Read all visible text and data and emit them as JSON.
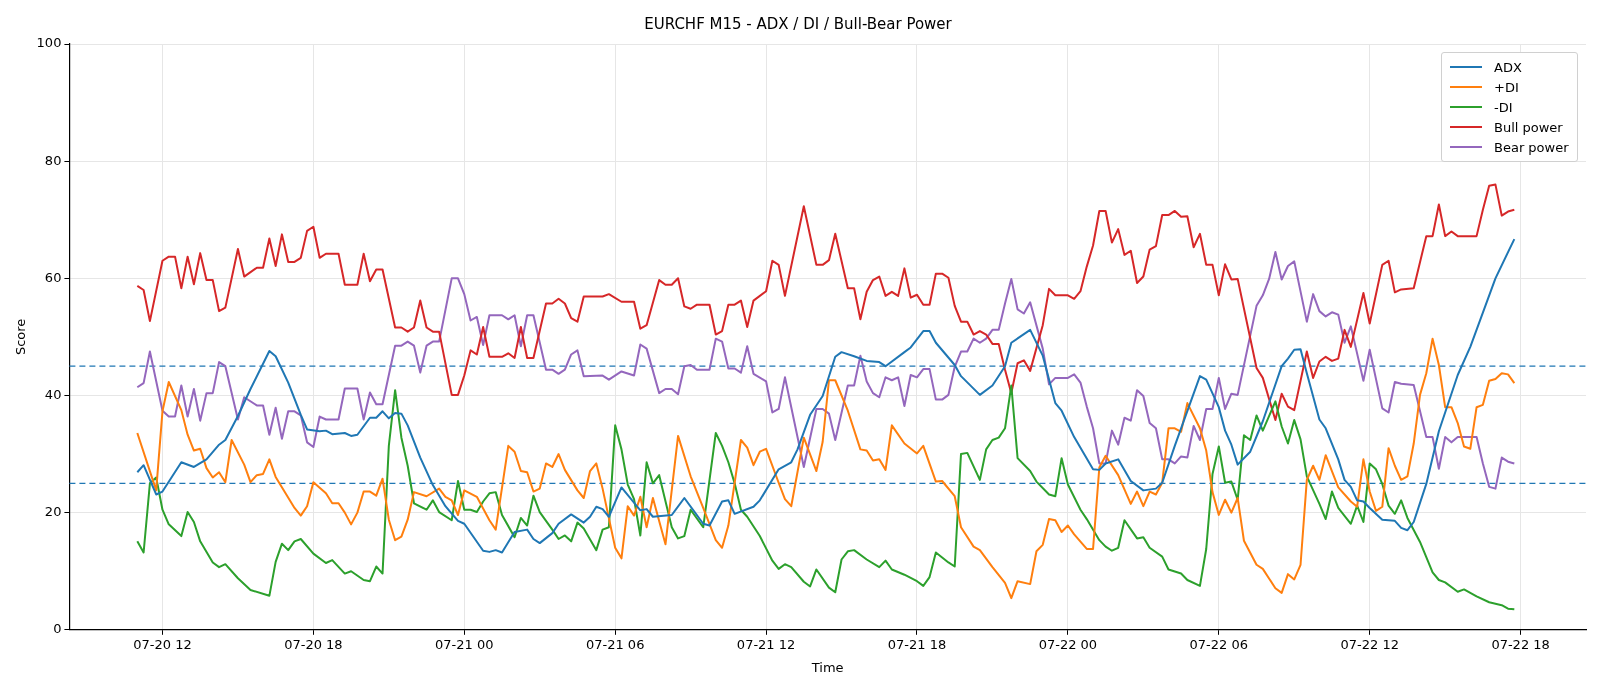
{
  "chart_data": {
    "type": "line",
    "title": "EURCHF M15 - ADX / DI / Bull-Bear Power",
    "xlabel": "Time",
    "ylabel": "Score",
    "xlim": [
      "--07-20T08:18",
      "--07-22T20:36"
    ],
    "xticks": [
      {
        "value": "--07-20T12:00",
        "label": "07-20 12"
      },
      {
        "value": "--07-20T18:00",
        "label": "07-20 18"
      },
      {
        "value": "--07-21T00:00",
        "label": "07-21 00"
      },
      {
        "value": "--07-21T06:00",
        "label": "07-21 06"
      },
      {
        "value": "--07-21T12:00",
        "label": "07-21 12"
      },
      {
        "value": "--07-21T18:00",
        "label": "07-21 18"
      },
      {
        "value": "--07-22T00:00",
        "label": "07-22 00"
      },
      {
        "value": "--07-22T06:00",
        "label": "07-22 06"
      },
      {
        "value": "--07-22T12:00",
        "label": "07-22 12"
      },
      {
        "value": "--07-22T18:00",
        "label": "07-22 18"
      }
    ],
    "ylim": [
      0,
      100
    ],
    "yticks": [
      0,
      20,
      40,
      60,
      80,
      100
    ],
    "grid": true,
    "legend": "top right",
    "marker": "none",
    "line_style": "solid",
    "ref_lines": [
      {
        "axis": "y",
        "value": 45,
        "color": "#1f77b4",
        "line_style": "dashed"
      },
      {
        "axis": "y",
        "value": 25,
        "color": "#1f77b4",
        "line_style": "dashed"
      }
    ],
    "series": [
      {
        "name": "ADX",
        "color": "#1f77b4",
        "x": [
          "--07-20T11:00",
          "--07-20T11:15",
          "--07-20T11:45",
          "--07-20T12:00",
          "--07-20T12:45",
          "--07-20T13:15",
          "--07-20T13:45",
          "--07-20T14:15",
          "--07-20T14:30",
          "--07-20T15:00",
          "--07-20T15:30",
          "--07-20T16:15",
          "--07-20T16:30",
          "--07-20T17:00",
          "--07-20T17:30",
          "--07-20T17:45",
          "--07-20T18:15",
          "--07-20T18:30",
          "--07-20T18:45",
          "--07-20T19:15",
          "--07-20T19:30",
          "--07-20T19:45",
          "--07-20T20:15",
          "--07-20T20:30",
          "--07-20T20:45",
          "--07-20T21:00",
          "--07-20T21:15",
          "--07-20T21:30",
          "--07-20T21:45",
          "--07-20T22:15",
          "--07-20T22:45",
          "--07-20T23:15",
          "--07-20T23:45",
          "--07-21T00:00",
          "--07-21T00:45",
          "--07-21T01:00",
          "--07-21T01:15",
          "--07-21T01:30",
          "--07-21T02:00",
          "--07-21T02:30",
          "--07-21T02:45",
          "--07-21T03:00",
          "--07-21T03:30",
          "--07-21T03:45",
          "--07-21T04:15",
          "--07-21T04:45",
          "--07-21T05:00",
          "--07-21T05:15",
          "--07-21T05:30",
          "--07-21T05:45",
          "--07-21T06:15",
          "--07-21T07:00",
          "--07-21T07:15",
          "--07-21T07:30",
          "--07-21T08:15",
          "--07-21T08:45",
          "--07-21T09:30",
          "--07-21T09:45",
          "--07-21T10:15",
          "--07-21T10:30",
          "--07-21T10:45",
          "--07-21T11:30",
          "--07-21T11:45",
          "--07-21T12:30",
          "--07-21T13:00",
          "--07-21T13:15",
          "--07-21T13:45",
          "--07-21T14:15",
          "--07-21T14:45",
          "--07-21T15:00",
          "--07-21T15:30",
          "--07-21T16:00",
          "--07-21T16:30",
          "--07-21T16:45",
          "--07-21T17:30",
          "--07-21T17:45",
          "--07-21T18:15",
          "--07-21T18:30",
          "--07-21T18:45",
          "--07-21T19:30",
          "--07-21T19:45",
          "--07-21T20:30",
          "--07-21T21:00",
          "--07-21T21:30",
          "--07-21T21:45",
          "--07-21T22:30",
          "--07-21T23:00",
          "--07-21T23:30",
          "--07-21T23:45",
          "--07-22T00:15",
          "--07-22T01:00",
          "--07-22T01:15",
          "--07-22T01:30",
          "--07-22T02:00",
          "--07-22T02:30",
          "--07-22T03:00",
          "--07-22T03:30",
          "--07-22T03:45",
          "--07-22T04:15",
          "--07-22T05:15",
          "--07-22T05:30",
          "--07-22T06:00",
          "--07-22T06:15",
          "--07-22T06:30",
          "--07-22T06:45",
          "--07-22T07:15",
          "--07-22T07:45",
          "--07-22T08:30",
          "--07-22T08:45",
          "--07-22T09:00",
          "--07-22T09:15",
          "--07-22T09:30",
          "--07-22T10:00",
          "--07-22T10:15",
          "--07-22T10:45",
          "--07-22T11:00",
          "--07-22T11:15",
          "--07-22T11:30",
          "--07-22T11:45",
          "--07-22T12:00",
          "--07-22T12:30",
          "--07-22T13:00",
          "--07-22T13:15",
          "--07-22T13:30",
          "--07-22T13:45",
          "--07-22T14:15",
          "--07-22T14:45",
          "--07-22T15:30",
          "--07-22T16:00",
          "--07-22T17:00",
          "--07-22T17:45"
        ],
        "values": [
          26.9,
          28.1,
          23.1,
          23.6,
          28.6,
          27.8,
          29.1,
          31.6,
          32.4,
          36.5,
          41.1,
          47.6,
          46.7,
          42.2,
          36.7,
          34.2,
          33.9,
          34.0,
          33.4,
          33.6,
          33.1,
          33.3,
          36.2,
          36.2,
          37.3,
          36.1,
          37.0,
          36.9,
          34.9,
          29.4,
          24.7,
          21.1,
          18.6,
          18.1,
          13.5,
          13.3,
          13.6,
          13.2,
          16.7,
          17.1,
          15.5,
          14.8,
          16.5,
          18.1,
          19.7,
          18.3,
          19.3,
          21.0,
          20.6,
          19.3,
          24.3,
          20.4,
          20.6,
          19.3,
          19.6,
          22.5,
          18.1,
          17.8,
          21.9,
          22.1,
          19.8,
          21.0,
          22.1,
          27.4,
          28.6,
          30.8,
          36.7,
          39.9,
          46.6,
          47.4,
          46.7,
          45.9,
          45.7,
          45.0,
          47.4,
          48.2,
          51.0,
          51.0,
          49.0,
          45.2,
          43.3,
          40.1,
          41.7,
          45.0,
          49.0,
          51.2,
          46.8,
          38.7,
          37.4,
          32.9,
          27.4,
          27.3,
          28.4,
          29.1,
          25.4,
          23.8,
          24.1,
          25.1,
          31.4,
          43.3,
          42.7,
          38.0,
          34.0,
          31.6,
          28.2,
          30.4,
          35.6,
          45.0,
          46.3,
          47.8,
          47.9,
          43.8,
          35.9,
          34.4,
          29.1,
          25.6,
          24.4,
          22.1,
          21.9,
          20.8,
          18.8,
          18.6,
          17.4,
          17.0,
          18.4,
          24.9,
          33.9,
          43.5,
          48.3,
          60.0,
          66.7
        ]
      },
      {
        "name": "+DI",
        "color": "#ff7f0e",
        "x": [
          "--07-20T11:00",
          "--07-20T11:45",
          "--07-20T12:00",
          "--07-20T12:15",
          "--07-20T12:45",
          "--07-20T13:00",
          "--07-20T13:15",
          "--07-20T13:30",
          "--07-20T13:45",
          "--07-20T14:00",
          "--07-20T14:15",
          "--07-20T14:30",
          "--07-20T14:45",
          "--07-20T15:15",
          "--07-20T15:30",
          "--07-20T15:45",
          "--07-20T16:00",
          "--07-20T16:15",
          "--07-20T16:30",
          "--07-20T17:15",
          "--07-20T17:30",
          "--07-20T17:45",
          "--07-20T18:00",
          "--07-20T18:30",
          "--07-20T18:45",
          "--07-20T19:00",
          "--07-20T19:15",
          "--07-20T19:30",
          "--07-20T19:45",
          "--07-20T20:00",
          "--07-20T20:15",
          "--07-20T20:30",
          "--07-20T20:45",
          "--07-20T21:00",
          "--07-20T21:15",
          "--07-20T21:30",
          "--07-20T21:45",
          "--07-20T22:00",
          "--07-20T22:30",
          "--07-20T23:00",
          "--07-20T23:15",
          "--07-20T23:30",
          "--07-20T23:45",
          "--07-21T00:00",
          "--07-21T00:30",
          "--07-21T01:00",
          "--07-21T01:15",
          "--07-21T01:45",
          "--07-21T02:00",
          "--07-21T02:15",
          "--07-21T02:30",
          "--07-21T02:45",
          "--07-21T03:00",
          "--07-21T03:15",
          "--07-21T03:30",
          "--07-21T03:45",
          "--07-21T04:00",
          "--07-21T04:30",
          "--07-21T04:45",
          "--07-21T05:00",
          "--07-21T05:15",
          "--07-21T05:30",
          "--07-21T06:00",
          "--07-21T06:15",
          "--07-21T06:30",
          "--07-21T06:45",
          "--07-21T07:00",
          "--07-21T07:15",
          "--07-21T07:30",
          "--07-21T08:00",
          "--07-21T08:30",
          "--07-21T09:00",
          "--07-21T09:30",
          "--07-21T10:00",
          "--07-21T10:15",
          "--07-21T10:30",
          "--07-21T11:00",
          "--07-21T11:15",
          "--07-21T11:30",
          "--07-21T11:45",
          "--07-21T12:00",
          "--07-21T12:30",
          "--07-21T12:45",
          "--07-21T13:00",
          "--07-21T13:30",
          "--07-21T14:00",
          "--07-21T14:15",
          "--07-21T14:30",
          "--07-21T14:45",
          "--07-21T15:15",
          "--07-21T15:45",
          "--07-21T16:00",
          "--07-21T16:15",
          "--07-21T16:30",
          "--07-21T16:45",
          "--07-21T17:00",
          "--07-21T17:30",
          "--07-21T18:00",
          "--07-21T18:15",
          "--07-21T18:45",
          "--07-21T19:00",
          "--07-21T19:30",
          "--07-21T19:45",
          "--07-21T20:15",
          "--07-21T20:30",
          "--07-21T21:00",
          "--07-21T21:30",
          "--07-21T21:45",
          "--07-21T22:00",
          "--07-21T22:30",
          "--07-21T22:45",
          "--07-21T23:00",
          "--07-21T23:15",
          "--07-21T23:30",
          "--07-21T23:45",
          "--07-22T00:00",
          "--07-22T00:15",
          "--07-22T00:45",
          "--07-22T01:00",
          "--07-22T01:15",
          "--07-22T01:30",
          "--07-22T02:00",
          "--07-22T02:30",
          "--07-22T02:45",
          "--07-22T03:00",
          "--07-22T03:15",
          "--07-22T03:30",
          "--07-22T03:45",
          "--07-22T04:00",
          "--07-22T04:15",
          "--07-22T04:30",
          "--07-22T04:45",
          "--07-22T05:15",
          "--07-22T05:30",
          "--07-22T05:45",
          "--07-22T06:00",
          "--07-22T06:15",
          "--07-22T06:30",
          "--07-22T06:45",
          "--07-22T07:00",
          "--07-22T07:30",
          "--07-22T07:45",
          "--07-22T08:15",
          "--07-22T08:30",
          "--07-22T08:45",
          "--07-22T09:00",
          "--07-22T09:15",
          "--07-22T09:30",
          "--07-22T09:45",
          "--07-22T10:00",
          "--07-22T10:15",
          "--07-22T10:45",
          "--07-22T11:15",
          "--07-22T11:30",
          "--07-22T11:45",
          "--07-22T12:00",
          "--07-22T12:15",
          "--07-22T12:30",
          "--07-22T12:45",
          "--07-22T13:00",
          "--07-22T13:15",
          "--07-22T13:30",
          "--07-22T13:45",
          "--07-22T14:00",
          "--07-22T14:15",
          "--07-22T14:30",
          "--07-22T14:45",
          "--07-22T15:00",
          "--07-22T15:15",
          "--07-22T15:30",
          "--07-22T15:45",
          "--07-22T16:00",
          "--07-22T16:15",
          "--07-22T16:30",
          "--07-22T16:45",
          "--07-22T17:00",
          "--07-22T17:15",
          "--07-22T17:30",
          "--07-22T17:45"
        ],
        "values": [
          33.6,
          23.8,
          37.3,
          42.3,
          37.5,
          33.3,
          30.6,
          30.9,
          27.6,
          26.0,
          26.9,
          25.2,
          32.4,
          28.2,
          25.2,
          26.4,
          26.6,
          29.1,
          26.1,
          20.8,
          19.5,
          21.1,
          25.2,
          23.3,
          21.6,
          21.6,
          20.0,
          18.0,
          20.0,
          23.6,
          23.6,
          22.9,
          25.8,
          18.8,
          15.3,
          15.9,
          18.8,
          23.5,
          22.8,
          24.1,
          22.7,
          22.1,
          19.6,
          23.8,
          22.7,
          18.7,
          17.1,
          31.4,
          30.4,
          27.1,
          26.9,
          23.6,
          24.1,
          28.4,
          27.8,
          30.0,
          27.3,
          23.8,
          22.5,
          27.1,
          28.4,
          24.1,
          14.0,
          12.2,
          21.1,
          19.5,
          22.7,
          17.5,
          22.5,
          14.6,
          33.1,
          26.2,
          20.8,
          15.3,
          14.0,
          17.8,
          32.4,
          31.1,
          28.1,
          30.4,
          30.9,
          25.1,
          22.3,
          21.1,
          32.8,
          27.1,
          32.1,
          42.6,
          42.6,
          37.4,
          30.8,
          30.6,
          28.9,
          29.1,
          27.3,
          34.9,
          31.8,
          30.1,
          31.4,
          25.3,
          25.4,
          22.8,
          17.5,
          14.2,
          13.6,
          10.7,
          8.0,
          5.4,
          8.3,
          7.8,
          13.4,
          14.5,
          18.9,
          18.7,
          16.7,
          17.8,
          16.3,
          13.8,
          13.8,
          27.7,
          29.7,
          26.4,
          21.5,
          23.6,
          21.1,
          23.6,
          23.1,
          25.1,
          34.4,
          34.4,
          33.8,
          38.7,
          34.4,
          30.6,
          23.5,
          19.6,
          22.2,
          20.0,
          22.5,
          15.2,
          11.1,
          10.4,
          7.1,
          6.3,
          9.5,
          8.6,
          11.1,
          25.6,
          28.0,
          25.6,
          29.8,
          24.3,
          21.9,
          21.0,
          29.1,
          23.6,
          20.3,
          21.0,
          31.0,
          28.0,
          25.6,
          26.2,
          31.8,
          40.1,
          43.8,
          49.7,
          45.2,
          38.0,
          38.0,
          35.3,
          31.3,
          30.9,
          38.0,
          38.4,
          42.5,
          42.8,
          43.8,
          43.6,
          42.1
        ]
      },
      {
        "name": "-DI",
        "color": "#2ca02c",
        "x": [
          "--07-20T11:00",
          "--07-20T11:15",
          "--07-20T11:30",
          "--07-20T11:45",
          "--07-20T12:00",
          "--07-20T12:15",
          "--07-20T12:45",
          "--07-20T13:00",
          "--07-20T13:15",
          "--07-20T13:30",
          "--07-20T14:00",
          "--07-20T14:15",
          "--07-20T14:30",
          "--07-20T15:00",
          "--07-20T15:30",
          "--07-20T16:15",
          "--07-20T16:30",
          "--07-20T16:45",
          "--07-20T17:00",
          "--07-20T17:15",
          "--07-20T17:30",
          "--07-20T18:00",
          "--07-20T18:30",
          "--07-20T18:45",
          "--07-20T19:15",
          "--07-20T19:30",
          "--07-20T20:00",
          "--07-20T20:15",
          "--07-20T20:30",
          "--07-20T20:45",
          "--07-20T21:00",
          "--07-20T21:15",
          "--07-20T21:30",
          "--07-20T21:45",
          "--07-20T22:00",
          "--07-20T22:30",
          "--07-20T22:45",
          "--07-20T23:00",
          "--07-20T23:30",
          "--07-20T23:45",
          "--07-21T00:00",
          "--07-21T00:15",
          "--07-21T00:30",
          "--07-21T00:45",
          "--07-21T01:00",
          "--07-21T01:15",
          "--07-21T01:30",
          "--07-21T02:00",
          "--07-21T02:15",
          "--07-21T02:30",
          "--07-21T02:45",
          "--07-21T03:00",
          "--07-21T03:30",
          "--07-21T03:45",
          "--07-21T04:00",
          "--07-21T04:15",
          "--07-21T04:30",
          "--07-21T04:45",
          "--07-21T05:15",
          "--07-21T05:30",
          "--07-21T05:45",
          "--07-21T06:00",
          "--07-21T06:15",
          "--07-21T06:30",
          "--07-21T06:45",
          "--07-21T07:00",
          "--07-21T07:15",
          "--07-21T07:30",
          "--07-21T07:45",
          "--07-21T08:15",
          "--07-21T08:30",
          "--07-21T08:45",
          "--07-21T09:00",
          "--07-21T09:30",
          "--07-21T10:00",
          "--07-21T10:15",
          "--07-21T10:30",
          "--07-21T10:45",
          "--07-21T11:00",
          "--07-21T11:15",
          "--07-21T11:45",
          "--07-21T12:15",
          "--07-21T12:30",
          "--07-21T12:45",
          "--07-21T13:00",
          "--07-21T13:30",
          "--07-21T13:45",
          "--07-21T14:00",
          "--07-21T14:30",
          "--07-21T14:45",
          "--07-21T15:00",
          "--07-21T15:15",
          "--07-21T15:30",
          "--07-21T16:00",
          "--07-21T16:30",
          "--07-21T16:45",
          "--07-21T17:00",
          "--07-21T17:30",
          "--07-21T18:00",
          "--07-21T18:15",
          "--07-21T18:30",
          "--07-21T18:45",
          "--07-21T19:15",
          "--07-21T19:30",
          "--07-21T19:45",
          "--07-21T20:00",
          "--07-21T20:30",
          "--07-21T20:45",
          "--07-21T21:00",
          "--07-21T21:15",
          "--07-21T21:30",
          "--07-21T21:45",
          "--07-21T22:00",
          "--07-21T22:30",
          "--07-21T22:45",
          "--07-21T23:15",
          "--07-21T23:30",
          "--07-21T23:45",
          "--07-22T00:00",
          "--07-22T00:30",
          "--07-22T00:45",
          "--07-22T01:15",
          "--07-22T01:30",
          "--07-22T01:45",
          "--07-22T02:00",
          "--07-22T02:15",
          "--07-22T02:45",
          "--07-22T03:00",
          "--07-22T03:15",
          "--07-22T03:45",
          "--07-22T04:00",
          "--07-22T04:30",
          "--07-22T04:45",
          "--07-22T05:15",
          "--07-22T05:30",
          "--07-22T05:45",
          "--07-22T06:00",
          "--07-22T06:15",
          "--07-22T06:30",
          "--07-22T06:45",
          "--07-22T07:00",
          "--07-22T07:15",
          "--07-22T07:30",
          "--07-22T07:45",
          "--07-22T08:15",
          "--07-22T08:30",
          "--07-22T08:45",
          "--07-22T09:00",
          "--07-22T09:15",
          "--07-22T09:30",
          "--07-22T10:00",
          "--07-22T10:15",
          "--07-22T10:30",
          "--07-22T10:45",
          "--07-22T11:15",
          "--07-22T11:30",
          "--07-22T11:45",
          "--07-22T12:00",
          "--07-22T12:15",
          "--07-22T12:30",
          "--07-22T12:45",
          "--07-22T13:00",
          "--07-22T13:15",
          "--07-22T13:30",
          "--07-22T14:00",
          "--07-22T14:30",
          "--07-22T14:45",
          "--07-22T15:00",
          "--07-22T15:30",
          "--07-22T15:45",
          "--07-22T16:15",
          "--07-22T16:45",
          "--07-22T17:15",
          "--07-22T17:30",
          "--07-22T17:45"
        ],
        "values": [
          15.1,
          13.2,
          25.0,
          26.0,
          20.5,
          18.0,
          16.0,
          20.1,
          18.4,
          15.1,
          11.5,
          10.7,
          11.2,
          8.8,
          6.8,
          5.8,
          11.6,
          14.7,
          13.6,
          15.1,
          15.5,
          13.0,
          11.4,
          11.9,
          9.6,
          10.0,
          8.5,
          8.3,
          10.8,
          9.6,
          31.4,
          40.9,
          32.8,
          28.0,
          21.6,
          20.5,
          22.1,
          20.1,
          18.7,
          25.4,
          20.5,
          20.5,
          20.1,
          21.9,
          23.3,
          23.5,
          19.6,
          15.8,
          19.1,
          17.8,
          22.9,
          20.1,
          17.1,
          15.5,
          16.1,
          15.1,
          18.3,
          17.3,
          13.6,
          17.1,
          17.5,
          34.9,
          30.8,
          24.8,
          22.3,
          16.1,
          28.6,
          25.0,
          26.4,
          17.5,
          15.6,
          16.0,
          20.5,
          17.5,
          33.6,
          31.4,
          28.6,
          25.0,
          20.5,
          19.3,
          16.0,
          11.8,
          10.4,
          11.2,
          10.7,
          8.2,
          7.4,
          10.3,
          7.2,
          6.4,
          12.0,
          13.4,
          13.6,
          12.0,
          10.7,
          11.8,
          10.3,
          9.4,
          8.3,
          7.5,
          9.0,
          13.2,
          11.5,
          10.8,
          30.0,
          30.2,
          25.6,
          30.8,
          32.4,
          32.8,
          34.4,
          41.7,
          29.3,
          27.1,
          25.3,
          23.1,
          22.8,
          29.3,
          24.8,
          20.5,
          18.9,
          15.3,
          14.2,
          13.5,
          14.0,
          18.7,
          15.6,
          15.8,
          14.0,
          12.5,
          10.3,
          9.6,
          8.5,
          7.5,
          13.8,
          26.6,
          31.3,
          25.1,
          25.3,
          22.2,
          33.2,
          32.4,
          36.6,
          34.0,
          39.0,
          34.7,
          31.8,
          35.8,
          32.5,
          26.2,
          21.5,
          18.9,
          23.6,
          20.8,
          18.1,
          21.2,
          18.4,
          28.4,
          27.4,
          24.9,
          21.2,
          19.8,
          22.1,
          19.1,
          15.0,
          9.8,
          8.5,
          8.1,
          6.5,
          6.9,
          5.7,
          4.7,
          4.2,
          3.6,
          3.5
        ]
      },
      {
        "name": "Bull power",
        "color": "#d62728",
        "x": [
          "--07-20T11:00",
          "--07-20T11:15",
          "--07-20T11:30",
          "--07-20T12:00",
          "--07-20T12:15",
          "--07-20T12:30",
          "--07-20T12:45",
          "--07-20T13:00",
          "--07-20T13:15",
          "--07-20T13:30",
          "--07-20T13:45",
          "--07-20T14:00",
          "--07-20T14:15",
          "--07-20T14:30",
          "--07-20T15:00",
          "--07-20T15:15",
          "--07-20T15:45",
          "--07-20T16:00",
          "--07-20T16:15",
          "--07-20T16:30",
          "--07-20T16:45",
          "--07-20T17:00",
          "--07-20T17:15",
          "--07-20T17:30",
          "--07-20T17:45",
          "--07-20T18:00",
          "--07-20T18:15",
          "--07-20T18:30",
          "--07-20T19:00",
          "--07-20T19:15",
          "--07-20T19:45",
          "--07-20T20:00",
          "--07-20T20:15",
          "--07-20T20:30",
          "--07-20T20:45",
          "--07-20T21:15",
          "--07-20T21:30",
          "--07-20T21:45",
          "--07-20T22:00",
          "--07-20T22:15",
          "--07-20T22:30",
          "--07-20T22:45",
          "--07-20T23:00",
          "--07-20T23:30",
          "--07-20T23:45",
          "--07-21T00:00",
          "--07-21T00:15",
          "--07-21T00:30",
          "--07-21T00:45",
          "--07-21T01:00",
          "--07-21T01:30",
          "--07-21T01:45",
          "--07-21T02:00",
          "--07-21T02:15",
          "--07-21T02:30",
          "--07-21T02:45",
          "--07-21T03:15",
          "--07-21T03:30",
          "--07-21T03:45",
          "--07-21T04:00",
          "--07-21T04:15",
          "--07-21T04:30",
          "--07-21T04:45",
          "--07-21T05:30",
          "--07-21T05:45",
          "--07-21T06:15",
          "--07-21T06:45",
          "--07-21T07:00",
          "--07-21T07:15",
          "--07-21T07:45",
          "--07-21T08:00",
          "--07-21T08:15",
          "--07-21T08:30",
          "--07-21T08:45",
          "--07-21T09:00",
          "--07-21T09:15",
          "--07-21T09:45",
          "--07-21T10:00",
          "--07-21T10:15",
          "--07-21T10:30",
          "--07-21T10:45",
          "--07-21T11:00",
          "--07-21T11:15",
          "--07-21T11:30",
          "--07-21T12:00",
          "--07-21T12:15",
          "--07-21T12:30",
          "--07-21T12:45",
          "--07-21T13:30",
          "--07-21T14:00",
          "--07-21T14:15",
          "--07-21T14:30",
          "--07-21T14:45",
          "--07-21T15:15",
          "--07-21T15:30",
          "--07-21T15:45",
          "--07-21T16:00",
          "--07-21T16:15",
          "--07-21T16:30",
          "--07-21T16:45",
          "--07-21T17:00",
          "--07-21T17:15",
          "--07-21T17:30",
          "--07-21T17:45",
          "--07-21T18:00",
          "--07-21T18:15",
          "--07-21T18:30",
          "--07-21T18:45",
          "--07-21T19:00",
          "--07-21T19:15",
          "--07-21T19:30",
          "--07-21T19:45",
          "--07-21T20:00",
          "--07-21T20:15",
          "--07-21T20:30",
          "--07-21T20:45",
          "--07-21T21:00",
          "--07-21T21:15",
          "--07-21T21:30",
          "--07-21T21:45",
          "--07-21T22:00",
          "--07-21T22:15",
          "--07-21T22:30",
          "--07-21T23:00",
          "--07-21T23:15",
          "--07-21T23:30",
          "--07-22T00:00",
          "--07-22T00:15",
          "--07-22T00:30",
          "--07-22T00:45",
          "--07-22T01:00",
          "--07-22T01:15",
          "--07-22T01:30",
          "--07-22T01:45",
          "--07-22T02:00",
          "--07-22T02:15",
          "--07-22T02:30",
          "--07-22T02:45",
          "--07-22T03:00",
          "--07-22T03:15",
          "--07-22T03:30",
          "--07-22T03:45",
          "--07-22T04:00",
          "--07-22T04:15",
          "--07-22T04:30",
          "--07-22T04:45",
          "--07-22T05:00",
          "--07-22T05:15",
          "--07-22T05:30",
          "--07-22T05:45",
          "--07-22T06:00",
          "--07-22T06:15",
          "--07-22T06:30",
          "--07-22T06:45",
          "--07-22T07:30",
          "--07-22T07:45",
          "--07-22T08:15",
          "--07-22T08:30",
          "--07-22T08:45",
          "--07-22T09:00",
          "--07-22T09:30",
          "--07-22T09:45",
          "--07-22T10:00",
          "--07-22T10:15",
          "--07-22T10:30",
          "--07-22T10:45",
          "--07-22T11:00",
          "--07-22T11:15",
          "--07-22T11:45",
          "--07-22T12:00",
          "--07-22T12:30",
          "--07-22T12:45",
          "--07-22T13:00",
          "--07-22T13:15",
          "--07-22T13:45",
          "--07-22T14:15",
          "--07-22T14:30",
          "--07-22T14:45",
          "--07-22T15:00",
          "--07-22T15:15",
          "--07-22T15:30",
          "--07-22T16:15",
          "--07-22T16:30",
          "--07-22T16:45",
          "--07-22T17:00",
          "--07-22T17:15",
          "--07-22T17:30",
          "--07-22T17:45"
        ],
        "values": [
          58.7,
          58.0,
          52.7,
          63.0,
          63.7,
          63.7,
          58.3,
          63.7,
          59.0,
          64.3,
          59.7,
          59.7,
          54.4,
          55.0,
          65.0,
          60.3,
          61.8,
          61.8,
          66.8,
          62.1,
          67.5,
          62.8,
          62.8,
          63.5,
          68.1,
          68.8,
          63.5,
          64.2,
          64.2,
          58.9,
          58.9,
          64.2,
          59.5,
          61.5,
          61.5,
          51.6,
          51.6,
          50.9,
          51.6,
          56.2,
          51.6,
          50.9,
          50.9,
          40.1,
          40.1,
          43.4,
          47.7,
          47.0,
          51.7,
          46.6,
          46.6,
          47.2,
          46.4,
          51.7,
          46.4,
          46.4,
          55.7,
          55.7,
          56.5,
          55.7,
          53.2,
          52.6,
          56.9,
          56.9,
          57.3,
          56.0,
          56.0,
          51.4,
          52.0,
          59.7,
          58.9,
          58.9,
          60.0,
          55.2,
          54.8,
          55.5,
          55.5,
          50.4,
          51.0,
          55.5,
          55.5,
          56.2,
          51.7,
          56.2,
          57.8,
          63.0,
          62.3,
          57.0,
          72.3,
          62.3,
          62.3,
          63.1,
          67.6,
          58.3,
          58.3,
          53.0,
          57.7,
          59.7,
          60.3,
          57.0,
          57.7,
          57.0,
          61.7,
          56.7,
          57.2,
          55.5,
          55.5,
          60.8,
          60.8,
          60.1,
          55.3,
          52.6,
          52.6,
          50.4,
          51.0,
          50.4,
          48.8,
          48.8,
          44.4,
          40.4,
          45.5,
          46.0,
          44.2,
          52.0,
          58.2,
          57.1,
          57.1,
          56.5,
          57.8,
          62.0,
          65.6,
          71.5,
          71.5,
          66.1,
          68.4,
          64.0,
          64.7,
          59.2,
          60.3,
          64.9,
          65.5,
          70.8,
          70.8,
          71.5,
          70.5,
          70.6,
          65.3,
          67.6,
          62.3,
          62.3,
          57.1,
          62.4,
          59.8,
          59.9,
          44.7,
          43.0,
          35.8,
          40.3,
          38.1,
          37.5,
          47.5,
          43.0,
          45.8,
          46.6,
          45.9,
          46.3,
          51.2,
          48.3,
          57.5,
          52.3,
          62.3,
          63.0,
          57.6,
          58.1,
          58.3,
          67.2,
          67.2,
          72.6,
          67.2,
          68.0,
          67.2,
          67.2,
          71.7,
          75.8,
          76.0,
          70.7,
          71.4,
          71.7
        ]
      },
      {
        "name": "Bear power",
        "color": "#9467bd",
        "x": [
          "--07-20T11:00",
          "--07-20T11:15",
          "--07-20T11:30",
          "--07-20T12:00",
          "--07-20T12:15",
          "--07-20T12:30",
          "--07-20T12:45",
          "--07-20T13:00",
          "--07-20T13:15",
          "--07-20T13:30",
          "--07-20T13:45",
          "--07-20T14:00",
          "--07-20T14:15",
          "--07-20T14:30",
          "--07-20T15:00",
          "--07-20T15:15",
          "--07-20T15:45",
          "--07-20T16:00",
          "--07-20T16:15",
          "--07-20T16:30",
          "--07-20T16:45",
          "--07-20T17:00",
          "--07-20T17:15",
          "--07-20T17:30",
          "--07-20T17:45",
          "--07-20T18:00",
          "--07-20T18:15",
          "--07-20T18:30",
          "--07-20T19:00",
          "--07-20T19:15",
          "--07-20T19:45",
          "--07-20T20:00",
          "--07-20T20:15",
          "--07-20T20:30",
          "--07-20T20:45",
          "--07-20T21:15",
          "--07-20T21:30",
          "--07-20T21:45",
          "--07-20T22:00",
          "--07-20T22:15",
          "--07-20T22:30",
          "--07-20T22:45",
          "--07-20T23:00",
          "--07-20T23:30",
          "--07-20T23:45",
          "--07-21T00:00",
          "--07-21T00:15",
          "--07-21T00:30",
          "--07-21T00:45",
          "--07-21T01:00",
          "--07-21T01:30",
          "--07-21T01:45",
          "--07-21T02:00",
          "--07-21T02:15",
          "--07-21T02:30",
          "--07-21T02:45",
          "--07-21T03:15",
          "--07-21T03:30",
          "--07-21T03:45",
          "--07-21T04:00",
          "--07-21T04:15",
          "--07-21T04:30",
          "--07-21T04:45",
          "--07-21T05:30",
          "--07-21T05:45",
          "--07-21T06:15",
          "--07-21T06:45",
          "--07-21T07:00",
          "--07-21T07:15",
          "--07-21T07:45",
          "--07-21T08:00",
          "--07-21T08:15",
          "--07-21T08:30",
          "--07-21T08:45",
          "--07-21T09:00",
          "--07-21T09:15",
          "--07-21T09:45",
          "--07-21T10:00",
          "--07-21T10:15",
          "--07-21T10:30",
          "--07-21T10:45",
          "--07-21T11:00",
          "--07-21T11:15",
          "--07-21T11:30",
          "--07-21T12:00",
          "--07-21T12:15",
          "--07-21T12:30",
          "--07-21T12:45",
          "--07-21T13:30",
          "--07-21T14:00",
          "--07-21T14:15",
          "--07-21T14:30",
          "--07-21T14:45",
          "--07-21T15:15",
          "--07-21T15:30",
          "--07-21T15:45",
          "--07-21T16:00",
          "--07-21T16:15",
          "--07-21T16:30",
          "--07-21T16:45",
          "--07-21T17:00",
          "--07-21T17:15",
          "--07-21T17:30",
          "--07-21T17:45",
          "--07-21T18:00",
          "--07-21T18:15",
          "--07-21T18:30",
          "--07-21T18:45",
          "--07-21T19:00",
          "--07-21T19:15",
          "--07-21T19:30",
          "--07-21T19:45",
          "--07-21T20:00",
          "--07-21T20:15",
          "--07-21T20:30",
          "--07-21T20:45",
          "--07-21T21:00",
          "--07-21T21:15",
          "--07-21T21:30",
          "--07-21T21:45",
          "--07-21T22:00",
          "--07-21T22:15",
          "--07-21T22:30",
          "--07-21T23:00",
          "--07-21T23:15",
          "--07-21T23:30",
          "--07-22T00:00",
          "--07-22T00:15",
          "--07-22T00:30",
          "--07-22T00:45",
          "--07-22T01:00",
          "--07-22T01:15",
          "--07-22T01:30",
          "--07-22T01:45",
          "--07-22T02:00",
          "--07-22T02:15",
          "--07-22T02:30",
          "--07-22T02:45",
          "--07-22T03:00",
          "--07-22T03:15",
          "--07-22T03:30",
          "--07-22T03:45",
          "--07-22T04:00",
          "--07-22T04:15",
          "--07-22T04:30",
          "--07-22T04:45",
          "--07-22T05:00",
          "--07-22T05:15",
          "--07-22T05:30",
          "--07-22T05:45",
          "--07-22T06:00",
          "--07-22T06:15",
          "--07-22T06:30",
          "--07-22T06:45",
          "--07-22T07:30",
          "--07-22T07:45",
          "--07-22T08:00",
          "--07-22T08:15",
          "--07-22T08:30",
          "--07-22T08:45",
          "--07-22T09:00",
          "--07-22T09:30",
          "--07-22T09:45",
          "--07-22T10:00",
          "--07-22T10:15",
          "--07-22T10:30",
          "--07-22T10:45",
          "--07-22T11:00",
          "--07-22T11:15",
          "--07-22T11:45",
          "--07-22T12:00",
          "--07-22T12:30",
          "--07-22T12:45",
          "--07-22T13:00",
          "--07-22T13:15",
          "--07-22T13:45",
          "--07-22T14:15",
          "--07-22T14:30",
          "--07-22T14:45",
          "--07-22T15:00",
          "--07-22T15:15",
          "--07-22T15:30",
          "--07-22T16:15",
          "--07-22T16:30",
          "--07-22T16:45",
          "--07-22T17:00",
          "--07-22T17:15",
          "--07-22T17:30",
          "--07-22T17:45"
        ],
        "values": [
          41.4,
          42.1,
          47.5,
          37.4,
          36.4,
          36.4,
          41.7,
          36.4,
          41.1,
          35.7,
          40.4,
          40.4,
          45.7,
          45.0,
          35.9,
          39.7,
          38.3,
          38.3,
          33.3,
          37.9,
          32.6,
          37.3,
          37.3,
          36.6,
          32.0,
          31.2,
          36.4,
          35.9,
          35.9,
          41.2,
          41.2,
          35.9,
          40.5,
          38.5,
          38.5,
          48.5,
          48.5,
          49.2,
          48.5,
          43.9,
          48.5,
          49.2,
          49.2,
          60.0,
          60.0,
          57.3,
          52.8,
          53.4,
          48.6,
          53.7,
          53.7,
          53.0,
          53.7,
          48.4,
          53.7,
          53.7,
          44.4,
          44.4,
          43.7,
          44.4,
          47.0,
          47.7,
          43.3,
          43.4,
          42.7,
          44.1,
          43.4,
          48.7,
          48.0,
          40.4,
          41.1,
          41.1,
          40.2,
          45.0,
          45.2,
          44.4,
          44.4,
          49.7,
          49.2,
          44.6,
          44.6,
          43.9,
          48.4,
          43.7,
          42.4,
          37.1,
          37.7,
          43.1,
          27.8,
          37.7,
          37.7,
          36.9,
          32.4,
          41.7,
          41.7,
          46.8,
          42.4,
          40.4,
          39.7,
          43.1,
          42.6,
          43.1,
          38.2,
          43.5,
          43.1,
          44.5,
          44.5,
          39.3,
          39.3,
          40.1,
          44.9,
          47.5,
          47.5,
          49.7,
          49.0,
          49.7,
          51.2,
          51.2,
          55.7,
          59.9,
          54.7,
          54.0,
          55.9,
          48.0,
          41.9,
          43.0,
          43.0,
          43.6,
          42.2,
          38.1,
          34.4,
          28.4,
          28.4,
          34.0,
          31.6,
          36.2,
          35.7,
          40.9,
          39.9,
          35.3,
          34.4,
          29.1,
          29.1,
          28.4,
          29.6,
          29.4,
          34.8,
          32.4,
          37.7,
          37.7,
          43.0,
          37.7,
          40.3,
          40.1,
          55.3,
          57.1,
          59.9,
          64.5,
          59.8,
          62.1,
          62.9,
          52.6,
          57.3,
          54.4,
          53.5,
          54.2,
          53.8,
          49.0,
          51.8,
          42.5,
          47.8,
          37.8,
          37.1,
          42.3,
          42.0,
          41.8,
          32.9,
          32.9,
          27.5,
          32.9,
          32.0,
          32.9,
          32.9,
          28.4,
          24.4,
          24.1,
          29.4,
          28.7,
          28.4
        ]
      }
    ]
  }
}
